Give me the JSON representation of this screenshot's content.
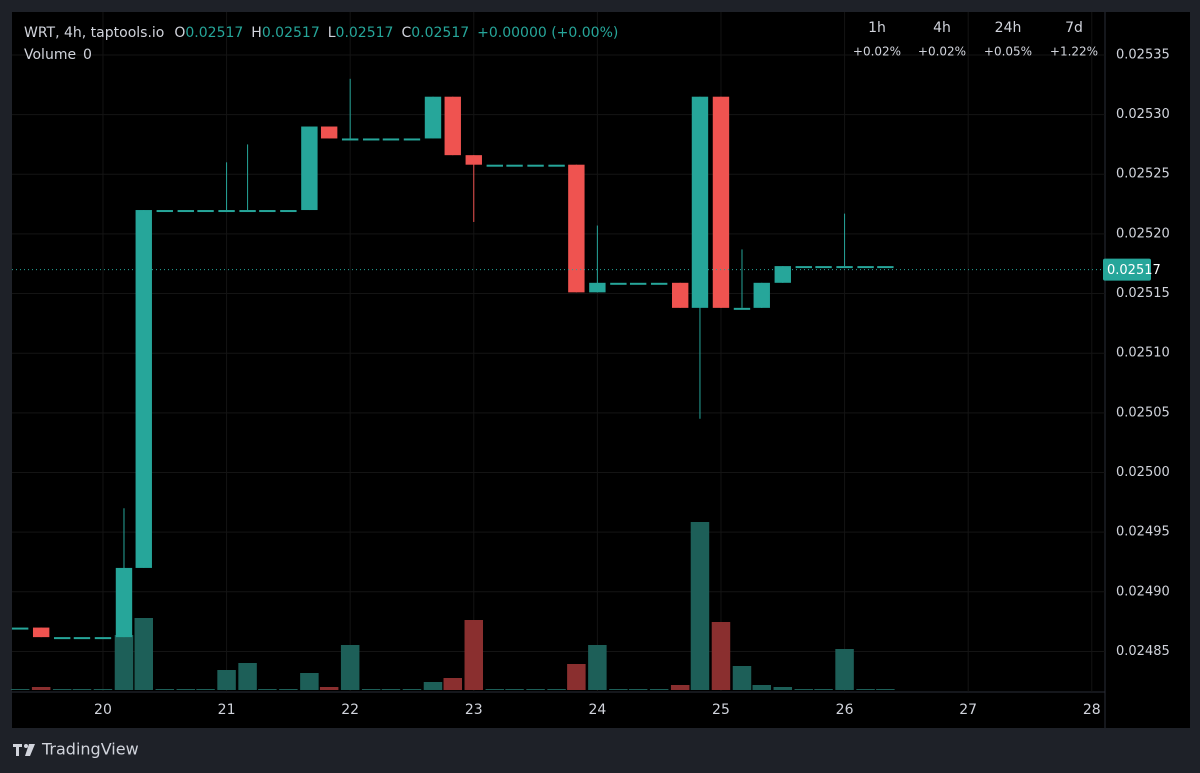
{
  "chart_data": {
    "type": "candlestick",
    "symbol": "WRT, 4h, taptools.io",
    "legend": {
      "o_label": "O",
      "o": "0.02517",
      "h_label": "H",
      "h": "0.02517",
      "l_label": "L",
      "l": "0.02517",
      "c_label": "C",
      "c": "0.02517",
      "change": "+0.00000 (+0.00%)"
    },
    "volume_label": "Volume",
    "volume_value": "0",
    "performance": {
      "periods": [
        "1h",
        "4h",
        "24h",
        "7d"
      ],
      "changes": [
        "+0.02%",
        "+0.02%",
        "+0.05%",
        "+1.22%"
      ]
    },
    "x": [
      19.33,
      19.5,
      19.67,
      19.83,
      20,
      20.17,
      20.33,
      20.5,
      20.67,
      20.83,
      21,
      21.17,
      21.33,
      21.5,
      21.67,
      21.83,
      22,
      22.17,
      22.33,
      22.5,
      22.67,
      22.83,
      23,
      23.17,
      23.33,
      23.5,
      23.67,
      23.83,
      24,
      24.17,
      24.33,
      24.5,
      24.67,
      24.83,
      25,
      25.17,
      25.33,
      25.5,
      25.67,
      25.83,
      26,
      26.17,
      26.33
    ],
    "open": [
      0.02487,
      0.02487,
      0.024862,
      0.024862,
      0.024862,
      0.024862,
      0.02492,
      0.02522,
      0.02522,
      0.02522,
      0.02522,
      0.02522,
      0.02522,
      0.02522,
      0.02522,
      0.02529,
      0.02528,
      0.02528,
      0.02528,
      0.02528,
      0.02528,
      0.025315,
      0.025266,
      0.025258,
      0.025258,
      0.025258,
      0.025258,
      0.025258,
      0.025151,
      0.025159,
      0.025159,
      0.025159,
      0.025159,
      0.025138,
      0.025315,
      0.025138,
      0.025138,
      0.025159,
      0.025173,
      0.025173,
      0.025173,
      0.025173,
      0.025173
    ],
    "high": [
      0.02487,
      0.02487,
      0.024862,
      0.024862,
      0.024862,
      0.02497,
      0.02522,
      0.02522,
      0.02522,
      0.02522,
      0.02526,
      0.025275,
      0.02522,
      0.02522,
      0.02529,
      0.02529,
      0.02533,
      0.02528,
      0.02528,
      0.02528,
      0.025315,
      0.025315,
      0.025266,
      0.025258,
      0.025258,
      0.025258,
      0.025258,
      0.025258,
      0.025207,
      0.025159,
      0.025159,
      0.025159,
      0.025159,
      0.025315,
      0.025315,
      0.025187,
      0.025159,
      0.025173,
      0.025173,
      0.025173,
      0.025217,
      0.025173,
      0.025173
    ],
    "low": [
      0.02487,
      0.024862,
      0.024862,
      0.024862,
      0.024862,
      0.024862,
      0.02492,
      0.02522,
      0.02522,
      0.02522,
      0.02522,
      0.02522,
      0.02522,
      0.02522,
      0.02522,
      0.02528,
      0.02528,
      0.02528,
      0.02528,
      0.02528,
      0.02528,
      0.025266,
      0.02521,
      0.025258,
      0.025258,
      0.025258,
      0.025258,
      0.025151,
      0.025151,
      0.025159,
      0.025159,
      0.025159,
      0.025138,
      0.025045,
      0.025138,
      0.025138,
      0.025138,
      0.025159,
      0.025173,
      0.025173,
      0.025173,
      0.025173,
      0.025173
    ],
    "close": [
      0.02487,
      0.024862,
      0.024862,
      0.024862,
      0.024862,
      0.02492,
      0.02522,
      0.02522,
      0.02522,
      0.02522,
      0.02522,
      0.02522,
      0.02522,
      0.02522,
      0.02529,
      0.02528,
      0.02528,
      0.02528,
      0.02528,
      0.02528,
      0.025315,
      0.025266,
      0.025258,
      0.025258,
      0.025258,
      0.025258,
      0.025258,
      0.025151,
      0.025159,
      0.025159,
      0.025159,
      0.025159,
      0.025138,
      0.025315,
      0.025138,
      0.025138,
      0.025159,
      0.025173,
      0.025173,
      0.025173,
      0.025173,
      0.025173,
      0.025173
    ],
    "volume": [
      1,
      3,
      1,
      1,
      1,
      55,
      72,
      1,
      1,
      1,
      20,
      27,
      1,
      1,
      17,
      3,
      45,
      1,
      1,
      1,
      8,
      12,
      70,
      1,
      1,
      1,
      1,
      26,
      45,
      1,
      1,
      1,
      5,
      168,
      68,
      24,
      5,
      3,
      1,
      1,
      41,
      1,
      1
    ],
    "colors": {
      "up": "#26a69a",
      "down": "#ef5350",
      "volume_up": "#1d5f58",
      "volume_down": "#8a2f2f"
    },
    "last_price": 0.02517,
    "xlim": [
      19.264,
      28.107
    ],
    "xticks": [
      20,
      21,
      22,
      23,
      24,
      25,
      26,
      27,
      28
    ],
    "ylim": [
      0.024816,
      0.025386
    ],
    "yticks": [
      0.02485,
      {
        "value": 0.0249,
        "label": "0.02490"
      },
      0.02495,
      {
        "value": 0.025,
        "label": "0.02500"
      },
      0.02505,
      {
        "value": 0.0251,
        "label": "0.02510"
      },
      0.02515,
      {
        "value": 0.0252,
        "label": "0.02520"
      },
      0.02525,
      {
        "value": 0.0253,
        "label": "0.02530"
      },
      0.02535
    ],
    "grid": true,
    "brand": "TradingView"
  }
}
